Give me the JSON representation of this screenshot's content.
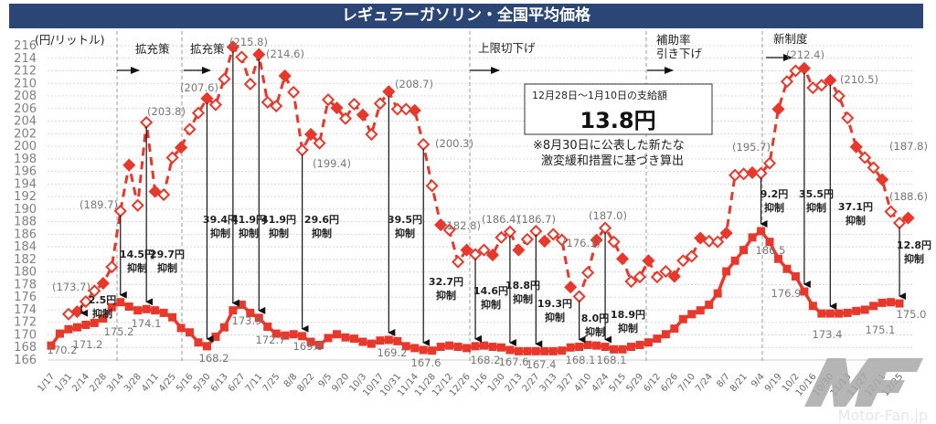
{
  "title": "レギュラーガソリン・全国平均価格",
  "chart_data": {
    "type": "line",
    "title": "レギュラーガソリン・全国平均価格",
    "ylabel": "(円/リットル)",
    "ylim": [
      166,
      216
    ],
    "yticks": [
      166,
      168,
      170,
      172,
      174,
      176,
      178,
      180,
      182,
      184,
      186,
      188,
      190,
      192,
      194,
      196,
      198,
      200,
      202,
      204,
      206,
      208,
      210,
      212,
      214,
      216
    ],
    "grid": true,
    "x_tick_labels": [
      "1/17",
      "1/31",
      "2/14",
      "2/28",
      "3/14",
      "3/28",
      "4/11",
      "4/25",
      "5/16",
      "5/30",
      "6/13",
      "6/27",
      "7/11",
      "7/25",
      "8/8",
      "8/22",
      "9/5",
      "9/20",
      "10/3",
      "10/17",
      "10/31",
      "11/14",
      "11/28",
      "12/12",
      "12/26",
      "1/16",
      "1/30",
      "2/13",
      "2/27",
      "3/13",
      "3/27",
      "4/10",
      "4/24",
      "5/15",
      "5/29",
      "6/12",
      "6/26",
      "7/10",
      "7/24",
      "8/7",
      "8/21",
      "9/4",
      "9/19",
      "10/2",
      "10/16",
      "10/30",
      "11/13",
      "11/27",
      "12/11",
      "12/25"
    ],
    "series": [
      {
        "style": "dashed-diamond",
        "color": "#e8382b",
        "start_week": 2,
        "values": [
          173.3,
          173.7,
          175.3,
          177,
          178.2,
          180.8,
          189.7,
          197,
          190.6,
          203.8,
          192.8,
          192.3,
          198.2,
          199.8,
          202.7,
          205.3,
          207.6,
          206.6,
          210.7,
          215.8,
          214.2,
          209.9,
          214.6,
          207,
          206.4,
          211.2,
          208.6,
          199.4,
          201.9,
          200.5,
          207.4,
          206.1,
          204.4,
          206.7,
          205.0,
          201.9,
          206.8,
          208.7,
          205.9,
          205.9,
          205.7,
          200.3,
          193.7,
          187.5,
          186.7,
          181.6,
          183.5,
          182.8,
          183.5,
          182.7,
          185.5,
          186.4,
          183.5,
          185.2,
          186.5,
          184.9,
          186,
          185.1,
          177.6,
          176.1,
          179.9,
          185.1,
          187.0,
          184.8,
          182.1,
          178.5,
          179.2,
          181.8,
          179.2,
          180.1,
          179.3,
          181.8,
          182.5,
          185.4,
          184.9,
          184.8,
          186.2,
          195.4,
          195.6,
          195.8,
          195.7,
          197.3,
          205.9,
          210.3,
          212.0,
          212.4,
          209.3,
          209.7,
          210.5,
          208,
          204.5,
          199.9,
          198.2,
          196.6,
          194.7,
          189.6,
          187.8,
          188.6
        ]
      },
      {
        "style": "solid-square",
        "color": "#e8382b",
        "start_week": 0,
        "values": [
          168.3,
          170.2,
          170.9,
          171.2,
          171.6,
          171.9,
          172.6,
          174.4,
          175.2,
          174.5,
          173.9,
          174.1,
          173.9,
          173.5,
          172.8,
          171.1,
          170.4,
          168.8,
          168.2,
          169.7,
          171.2,
          173.9,
          174.8,
          173.5,
          172.7,
          171.3,
          170.2,
          169.9,
          170.1,
          169.8,
          168.9,
          168.4,
          169.5,
          170.1,
          169.6,
          169.4,
          168.9,
          168.6,
          169.1,
          169.2,
          169.0,
          168.2,
          167.9,
          167.6,
          167.5,
          168.1,
          168.3,
          168.1,
          167.9,
          168.2,
          168.3,
          168.1,
          168.0,
          167.6,
          167.4,
          167.4,
          167.4,
          167.4,
          167.4,
          167.5,
          168.0,
          168.1,
          168.4,
          168.3,
          168.1,
          167.7,
          167.7,
          168.1,
          168.4,
          168.8,
          169.4,
          170.1,
          171.0,
          172.5,
          173.3,
          173.9,
          174.8,
          176.6,
          180.1,
          181.8,
          183.5,
          185.5,
          186.5,
          184.8,
          182.1,
          180.5,
          179.3,
          176.9,
          174.6,
          173.4,
          173.4,
          173.4,
          173.5,
          173.8,
          174.0,
          174.6,
          175.1,
          175.2,
          175.0
        ]
      }
    ],
    "dashed_labels": [
      "(173.7)",
      "(189.7)",
      "(203.8)",
      "(207.6)",
      "(215.8)",
      "(214.6)",
      "(199.4)",
      "(208.7)",
      "(200.3)",
      "(182.8)",
      "(186.4)",
      "(186.7)",
      "(187.0)",
      "(176.1)",
      "(195.7)",
      "(212.4)",
      "(210.5)",
      "(187.8)",
      "(188.6)"
    ],
    "solid_labels": [
      "170.2",
      "171.2",
      "175.2",
      "174.1",
      "168.2",
      "173.9",
      "172.7",
      "169.8",
      "169.2",
      "167.6",
      "168.2",
      "167.6",
      "167.4",
      "168.1",
      "168.1",
      "186.5",
      "176.9",
      "173.4",
      "175.1",
      "175.0"
    ],
    "suppression": [
      {
        "amount": "2.5円",
        "note": "抑制"
      },
      {
        "amount": "14.5円",
        "note": "抑制"
      },
      {
        "amount": "29.7円",
        "note": "抑制"
      },
      {
        "amount": "39.4円",
        "note": "抑制"
      },
      {
        "amount": "41.9円",
        "note": "抑制"
      },
      {
        "amount": "41.9円",
        "note": "抑制"
      },
      {
        "amount": "29.6円",
        "note": "抑制"
      },
      {
        "amount": "39.5円",
        "note": "抑制"
      },
      {
        "amount": "32.7円",
        "note": "抑制"
      },
      {
        "amount": "14.6円",
        "note": "抑制"
      },
      {
        "amount": "18.8円",
        "note": "抑制"
      },
      {
        "amount": "19.3円",
        "note": "抑制"
      },
      {
        "amount": "8.0円",
        "note": "抑制"
      },
      {
        "amount": "18.9円",
        "note": "抑制"
      },
      {
        "amount": "9.2円",
        "note": "抑制"
      },
      {
        "amount": "35.5円",
        "note": "抑制"
      },
      {
        "amount": "37.1円",
        "note": "抑制"
      },
      {
        "amount": "12.8円",
        "note": "抑制"
      }
    ],
    "periods": [
      {
        "label": "拡充策"
      },
      {
        "label": "拡充策"
      },
      {
        "label": "上限切下げ"
      },
      {
        "label": "補助率",
        "label2": "引き下げ"
      },
      {
        "label": "新制度"
      }
    ],
    "callout": {
      "heading": "12月28日～1月10日の支給額",
      "value": "13.8円",
      "note1": "※8月30日に公表した新たな",
      "note2": "激変緩和措置に基づき算出"
    }
  },
  "watermark": "Motor-Fan.jp"
}
